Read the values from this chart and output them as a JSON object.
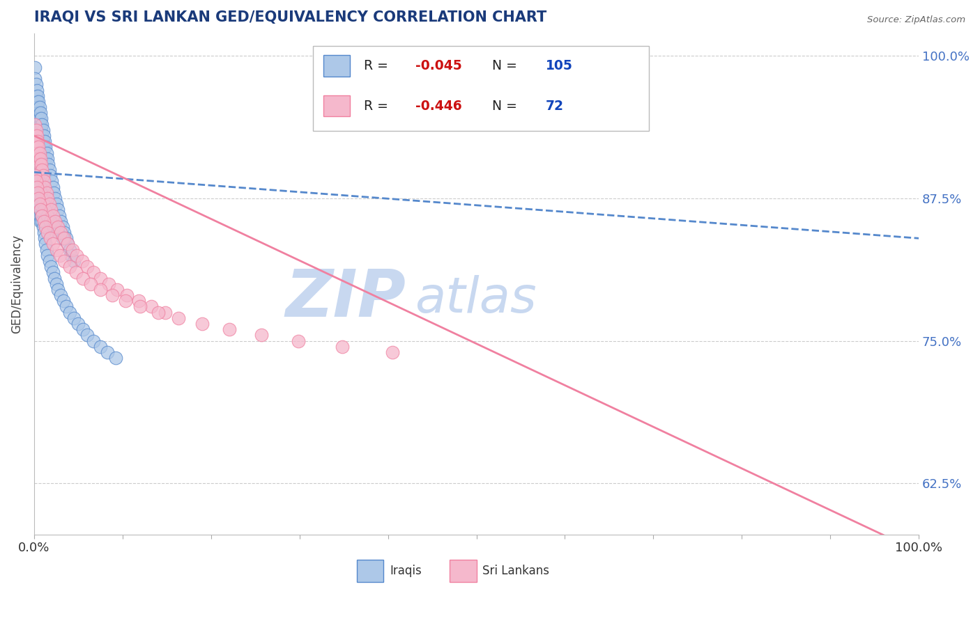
{
  "title": "IRAQI VS SRI LANKAN GED/EQUIVALENCY CORRELATION CHART",
  "source": "Source: ZipAtlas.com",
  "ylabel": "GED/Equivalency",
  "ytick_labels": [
    "62.5%",
    "75.0%",
    "87.5%",
    "100.0%"
  ],
  "ytick_values": [
    0.625,
    0.75,
    0.875,
    1.0
  ],
  "legend_iraqis": {
    "R": -0.045,
    "N": 105,
    "color": "#adc8e8",
    "line_color": "#5588cc"
  },
  "legend_srilankans": {
    "R": -0.446,
    "N": 72,
    "color": "#f5b8cc",
    "line_color": "#f080a0"
  },
  "iraqis_x": [
    0.001,
    0.001,
    0.002,
    0.002,
    0.002,
    0.003,
    0.003,
    0.003,
    0.004,
    0.004,
    0.004,
    0.005,
    0.005,
    0.005,
    0.006,
    0.006,
    0.006,
    0.007,
    0.007,
    0.008,
    0.008,
    0.009,
    0.009,
    0.01,
    0.01,
    0.011,
    0.011,
    0.012,
    0.013,
    0.013,
    0.014,
    0.015,
    0.016,
    0.017,
    0.018,
    0.02,
    0.021,
    0.022,
    0.024,
    0.025,
    0.027,
    0.028,
    0.03,
    0.032,
    0.034,
    0.036,
    0.038,
    0.04,
    0.042,
    0.045,
    0.001,
    0.001,
    0.002,
    0.002,
    0.003,
    0.003,
    0.004,
    0.004,
    0.005,
    0.005,
    0.006,
    0.006,
    0.007,
    0.007,
    0.008,
    0.009,
    0.01,
    0.011,
    0.012,
    0.013,
    0.014,
    0.015,
    0.017,
    0.019,
    0.021,
    0.023,
    0.025,
    0.027,
    0.03,
    0.033,
    0.036,
    0.04,
    0.045,
    0.05,
    0.055,
    0.06,
    0.067,
    0.075,
    0.083,
    0.092,
    0.001,
    0.002,
    0.003,
    0.004,
    0.005,
    0.006,
    0.007,
    0.008,
    0.01,
    0.012,
    0.015,
    0.018,
    0.022,
    0.027,
    0.032
  ],
  "iraqis_y": [
    0.99,
    0.98,
    0.975,
    0.965,
    0.955,
    0.97,
    0.96,
    0.95,
    0.965,
    0.955,
    0.945,
    0.96,
    0.95,
    0.94,
    0.955,
    0.945,
    0.935,
    0.95,
    0.94,
    0.945,
    0.935,
    0.94,
    0.93,
    0.935,
    0.925,
    0.93,
    0.92,
    0.925,
    0.92,
    0.91,
    0.915,
    0.91,
    0.905,
    0.9,
    0.895,
    0.89,
    0.885,
    0.88,
    0.875,
    0.87,
    0.865,
    0.86,
    0.855,
    0.85,
    0.845,
    0.84,
    0.835,
    0.83,
    0.825,
    0.82,
    0.895,
    0.885,
    0.89,
    0.88,
    0.885,
    0.875,
    0.88,
    0.87,
    0.875,
    0.865,
    0.87,
    0.86,
    0.865,
    0.855,
    0.86,
    0.855,
    0.85,
    0.845,
    0.84,
    0.835,
    0.83,
    0.825,
    0.82,
    0.815,
    0.81,
    0.805,
    0.8,
    0.795,
    0.79,
    0.785,
    0.78,
    0.775,
    0.77,
    0.765,
    0.76,
    0.755,
    0.75,
    0.745,
    0.74,
    0.735,
    0.91,
    0.905,
    0.9,
    0.895,
    0.89,
    0.885,
    0.88,
    0.875,
    0.87,
    0.865,
    0.86,
    0.855,
    0.85,
    0.845,
    0.84
  ],
  "srilankans_x": [
    0.001,
    0.001,
    0.002,
    0.002,
    0.003,
    0.003,
    0.004,
    0.004,
    0.005,
    0.005,
    0.006,
    0.006,
    0.007,
    0.008,
    0.009,
    0.01,
    0.011,
    0.012,
    0.014,
    0.015,
    0.017,
    0.019,
    0.021,
    0.024,
    0.027,
    0.03,
    0.034,
    0.038,
    0.043,
    0.048,
    0.054,
    0.06,
    0.067,
    0.075,
    0.084,
    0.094,
    0.105,
    0.118,
    0.132,
    0.148,
    0.001,
    0.002,
    0.003,
    0.004,
    0.005,
    0.006,
    0.007,
    0.009,
    0.011,
    0.013,
    0.015,
    0.018,
    0.021,
    0.025,
    0.029,
    0.034,
    0.04,
    0.047,
    0.055,
    0.064,
    0.075,
    0.088,
    0.103,
    0.12,
    0.14,
    0.163,
    0.19,
    0.221,
    0.257,
    0.299,
    0.348,
    0.405
  ],
  "srilankans_y": [
    0.94,
    0.93,
    0.935,
    0.925,
    0.93,
    0.92,
    0.925,
    0.915,
    0.92,
    0.91,
    0.915,
    0.905,
    0.91,
    0.905,
    0.9,
    0.895,
    0.89,
    0.885,
    0.88,
    0.875,
    0.87,
    0.865,
    0.86,
    0.855,
    0.85,
    0.845,
    0.84,
    0.835,
    0.83,
    0.825,
    0.82,
    0.815,
    0.81,
    0.805,
    0.8,
    0.795,
    0.79,
    0.785,
    0.78,
    0.775,
    0.895,
    0.89,
    0.885,
    0.88,
    0.875,
    0.87,
    0.865,
    0.86,
    0.855,
    0.85,
    0.845,
    0.84,
    0.835,
    0.83,
    0.825,
    0.82,
    0.815,
    0.81,
    0.805,
    0.8,
    0.795,
    0.79,
    0.785,
    0.78,
    0.775,
    0.77,
    0.765,
    0.76,
    0.755,
    0.75,
    0.745,
    0.74
  ],
  "watermark_zip": "ZIP",
  "watermark_atlas": "atlas",
  "watermark_color_zip": "#c8d8f0",
  "watermark_color_atlas": "#c8d8f0",
  "background_color": "#ffffff",
  "plot_bg_color": "#ffffff",
  "grid_color": "#cccccc",
  "title_color": "#1a3a7a",
  "axis_label_color": "#444444",
  "right_tick_color": "#4472c4",
  "xtick_count": 10
}
